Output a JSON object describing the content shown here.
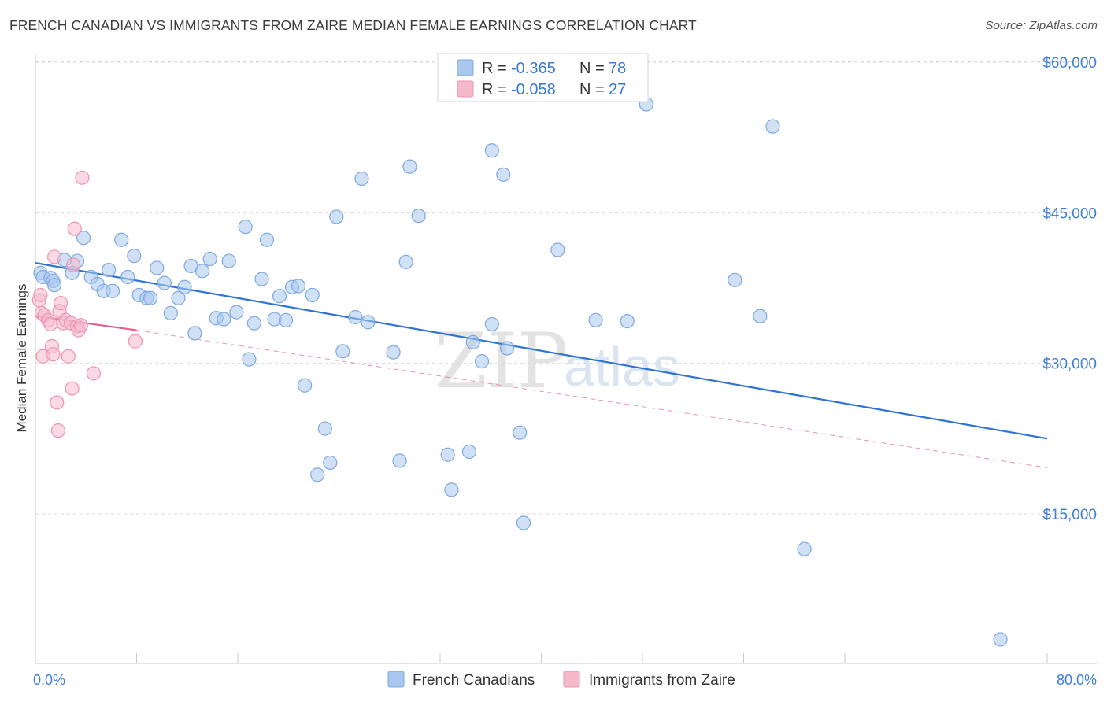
{
  "title": "FRENCH CANADIAN VS IMMIGRANTS FROM ZAIRE MEDIAN FEMALE EARNINGS CORRELATION CHART",
  "source": "Source: ZipAtlas.com",
  "watermark": {
    "zip": "ZIP",
    "atlas": "atlas"
  },
  "colors": {
    "blue_fill": "#a9c8ef",
    "blue_stroke": "#7ea8e0",
    "blue_line": "#2f74d0",
    "pink_fill": "#f6b9cc",
    "pink_stroke": "#ee93b0",
    "pink_line": "#e0648e",
    "grid": "#d9d9d9",
    "axis_text": "#3f7fd6"
  },
  "legend": {
    "rows": [
      {
        "r_label": "R = ",
        "r_value": "-0.365",
        "n_label": "N = ",
        "n_value": "78",
        "color": "blue"
      },
      {
        "r_label": "R = ",
        "r_value": "-0.058",
        "n_label": "N = ",
        "n_value": "27",
        "color": "pink"
      }
    ]
  },
  "bottom_legend": [
    "French Canadians",
    "Immigrants from Zaire"
  ],
  "chart_data": {
    "type": "scatter",
    "title": "FRENCH CANADIAN VS IMMIGRANTS FROM ZAIRE MEDIAN FEMALE EARNINGS CORRELATION CHART",
    "xlabel": "",
    "ylabel": "Median Female Earnings",
    "xlim": [
      0,
      80
    ],
    "ylim": [
      1500,
      62000
    ],
    "x_tick_labels": {
      "left": "0.0%",
      "right": "80.0%"
    },
    "y_ticks": [
      {
        "value": 60000,
        "label": "$60,000"
      },
      {
        "value": 45000,
        "label": "$45,000"
      },
      {
        "value": 30000,
        "label": "$30,000"
      },
      {
        "value": 15000,
        "label": "$15,000"
      }
    ],
    "series": [
      {
        "name": "French Canadians",
        "color": "blue",
        "R": -0.365,
        "N": 78,
        "trend": {
          "x": [
            0,
            80
          ],
          "y": [
            40000,
            22500
          ]
        },
        "points": [
          [
            0.4,
            39000
          ],
          [
            0.6,
            38600
          ],
          [
            1.2,
            38500
          ],
          [
            1.4,
            38200
          ],
          [
            1.5,
            37800
          ],
          [
            2.3,
            40300
          ],
          [
            2.9,
            39000
          ],
          [
            3.3,
            40200
          ],
          [
            3.8,
            42500
          ],
          [
            4.4,
            38600
          ],
          [
            4.9,
            37900
          ],
          [
            5.4,
            37200
          ],
          [
            5.8,
            39300
          ],
          [
            6.1,
            37200
          ],
          [
            6.8,
            42300
          ],
          [
            7.3,
            38600
          ],
          [
            7.8,
            40700
          ],
          [
            8.2,
            36800
          ],
          [
            8.8,
            36500
          ],
          [
            9.1,
            36500
          ],
          [
            9.6,
            39500
          ],
          [
            10.2,
            38000
          ],
          [
            10.7,
            35000
          ],
          [
            11.3,
            36500
          ],
          [
            11.8,
            37600
          ],
          [
            12.3,
            39700
          ],
          [
            12.6,
            33000
          ],
          [
            13.2,
            39200
          ],
          [
            13.8,
            40400
          ],
          [
            14.3,
            34500
          ],
          [
            14.9,
            34400
          ],
          [
            15.3,
            40200
          ],
          [
            15.9,
            35100
          ],
          [
            16.6,
            43600
          ],
          [
            16.9,
            30400
          ],
          [
            17.3,
            34000
          ],
          [
            17.9,
            38400
          ],
          [
            18.3,
            42300
          ],
          [
            18.9,
            34400
          ],
          [
            19.3,
            36700
          ],
          [
            19.8,
            34300
          ],
          [
            20.3,
            37600
          ],
          [
            20.8,
            37700
          ],
          [
            21.3,
            27800
          ],
          [
            21.9,
            36800
          ],
          [
            22.3,
            18900
          ],
          [
            22.9,
            23500
          ],
          [
            23.3,
            20100
          ],
          [
            23.8,
            44600
          ],
          [
            24.3,
            31200
          ],
          [
            25.3,
            34600
          ],
          [
            25.8,
            48400
          ],
          [
            26.3,
            34100
          ],
          [
            28.3,
            31100
          ],
          [
            28.8,
            20300
          ],
          [
            29.3,
            40100
          ],
          [
            29.6,
            49600
          ],
          [
            30.3,
            44700
          ],
          [
            32.6,
            20900
          ],
          [
            32.9,
            17400
          ],
          [
            34.3,
            21200
          ],
          [
            34.6,
            32100
          ],
          [
            35.3,
            30200
          ],
          [
            36.1,
            33900
          ],
          [
            36.1,
            51200
          ],
          [
            37.0,
            48800
          ],
          [
            37.3,
            31500
          ],
          [
            38.3,
            23100
          ],
          [
            38.6,
            14100
          ],
          [
            41.3,
            41300
          ],
          [
            44.3,
            34300
          ],
          [
            46.8,
            34200
          ],
          [
            48.3,
            55800
          ],
          [
            55.3,
            38300
          ],
          [
            57.3,
            34700
          ],
          [
            58.3,
            53600
          ],
          [
            60.8,
            11500
          ],
          [
            76.3,
            2500
          ]
        ]
      },
      {
        "name": "Immigrants from Zaire",
        "color": "pink",
        "R": -0.058,
        "N": 27,
        "trend": {
          "x": [
            0,
            8
          ],
          "y": [
            34700,
            33300
          ]
        },
        "trend_extended": {
          "x": [
            8,
            80
          ],
          "y": [
            33300,
            19600
          ]
        },
        "points": [
          [
            0.3,
            36300
          ],
          [
            0.4,
            36800
          ],
          [
            0.5,
            35000
          ],
          [
            0.6,
            30700
          ],
          [
            0.7,
            34800
          ],
          [
            1.0,
            34300
          ],
          [
            1.2,
            33900
          ],
          [
            1.3,
            31700
          ],
          [
            1.4,
            30900
          ],
          [
            1.5,
            40600
          ],
          [
            1.7,
            26100
          ],
          [
            1.8,
            23300
          ],
          [
            1.9,
            35200
          ],
          [
            2.0,
            36000
          ],
          [
            2.2,
            34000
          ],
          [
            2.4,
            34300
          ],
          [
            2.6,
            30700
          ],
          [
            2.8,
            34000
          ],
          [
            2.9,
            27500
          ],
          [
            3.0,
            39800
          ],
          [
            3.1,
            43400
          ],
          [
            3.3,
            33700
          ],
          [
            3.4,
            33300
          ],
          [
            3.6,
            33800
          ],
          [
            3.7,
            48500
          ],
          [
            4.6,
            29000
          ],
          [
            7.9,
            32200
          ]
        ]
      }
    ]
  }
}
